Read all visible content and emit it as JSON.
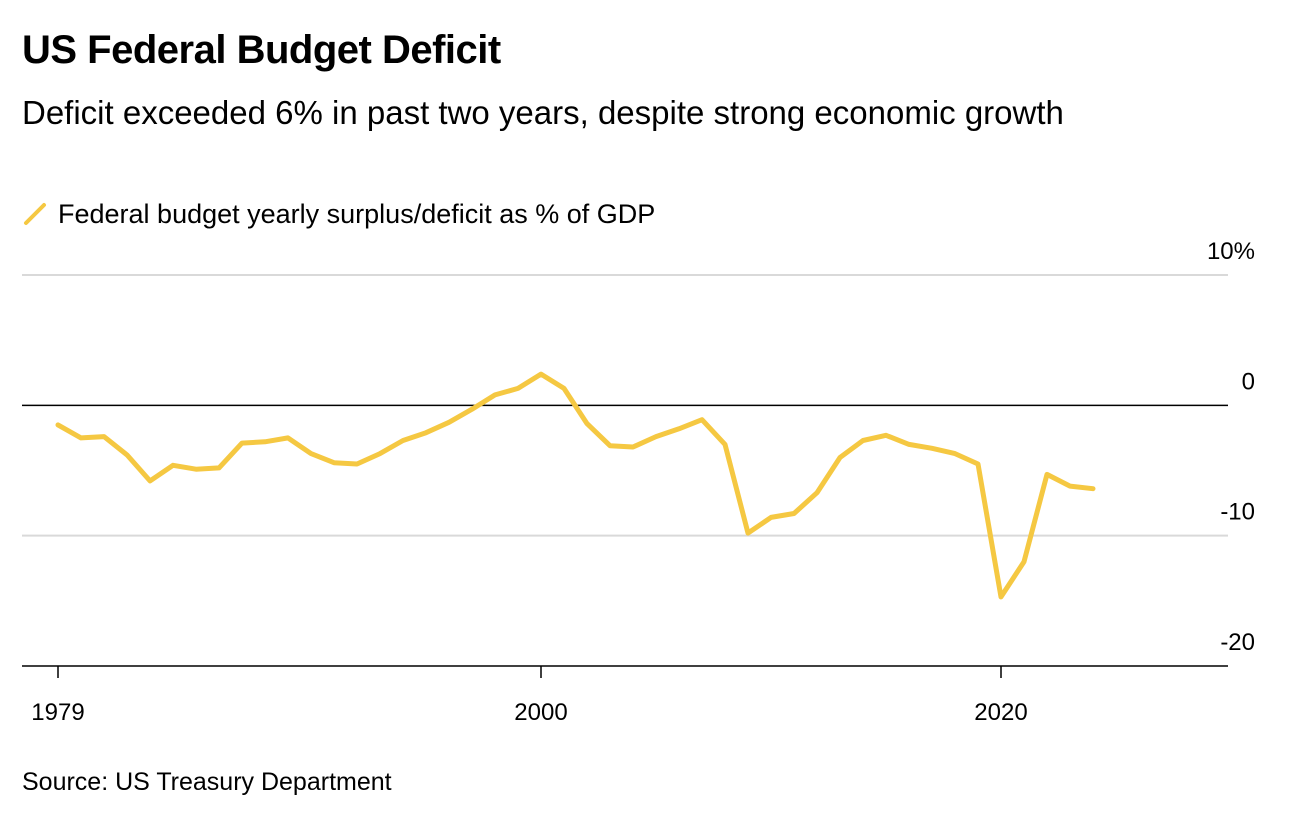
{
  "chart_data": {
    "type": "line",
    "title": "US Federal Budget Deficit",
    "subtitle": "Deficit exceeded 6% in past two years, despite strong economic growth",
    "source": "Source: US Treasury Department",
    "series": [
      {
        "name": "Federal budget yearly surplus/deficit as % of GDP",
        "color": "#f5c842",
        "x": [
          1979,
          1980,
          1981,
          1982,
          1983,
          1984,
          1985,
          1986,
          1987,
          1988,
          1989,
          1990,
          1991,
          1992,
          1993,
          1994,
          1995,
          1996,
          1997,
          1998,
          1999,
          2000,
          2001,
          2002,
          2003,
          2004,
          2005,
          2006,
          2007,
          2008,
          2009,
          2010,
          2011,
          2012,
          2013,
          2014,
          2015,
          2016,
          2017,
          2018,
          2019,
          2020,
          2021,
          2022,
          2023,
          2024
        ],
        "values": [
          -1.5,
          -2.5,
          -2.4,
          -3.8,
          -5.8,
          -4.6,
          -4.9,
          -4.8,
          -2.9,
          -2.8,
          -2.5,
          -3.7,
          -4.4,
          -4.5,
          -3.7,
          -2.7,
          -2.1,
          -1.3,
          -0.3,
          0.8,
          1.3,
          2.4,
          1.3,
          -1.4,
          -3.1,
          -3.2,
          -2.4,
          -1.8,
          -1.1,
          -3.0,
          -9.8,
          -8.6,
          -8.3,
          -6.7,
          -4.0,
          -2.7,
          -2.3,
          -3.0,
          -3.3,
          -3.7,
          -4.5,
          -14.7,
          -12.0,
          -5.3,
          -6.2,
          -6.4
        ]
      }
    ],
    "y_ticks": [
      {
        "value": 10,
        "label": "10%"
      },
      {
        "value": 0,
        "label": "0"
      },
      {
        "value": -10,
        "label": "-10"
      },
      {
        "value": -20,
        "label": "-20"
      }
    ],
    "x_ticks": [
      {
        "value": 1979,
        "label": "1979"
      },
      {
        "value": 2000,
        "label": "2000"
      },
      {
        "value": 2020,
        "label": "2020"
      }
    ],
    "ylim": [
      -20,
      10
    ],
    "xlim": [
      1977.5,
      2029
    ],
    "grid": true,
    "legend_position": "top-left"
  }
}
